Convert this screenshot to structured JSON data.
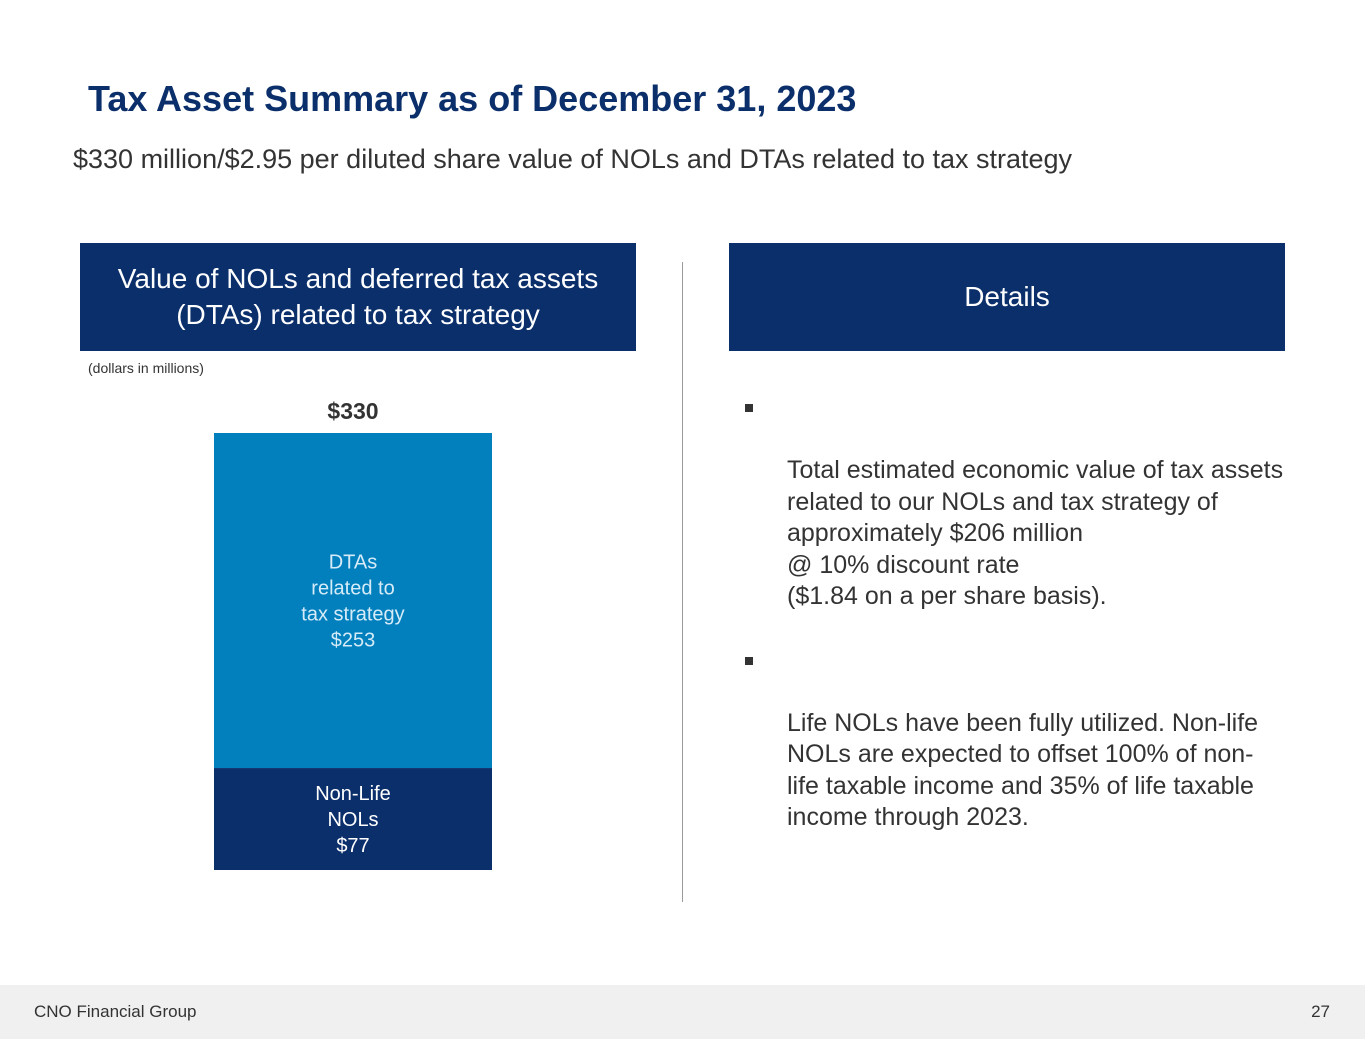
{
  "title": "Tax Asset Summary as of December 31, 2023",
  "subtitle": "$330 million/$2.95 per diluted share value of NOLs and DTAs related to tax strategy",
  "left_panel": {
    "header": "Value of NOLs and deferred tax assets (DTAs) related to tax strategy",
    "units": "(dollars in millions)"
  },
  "right_panel": {
    "header": "Details",
    "bullets": [
      "Total estimated economic value of tax assets related to our NOLs and tax strategy of approximately $206 million\n@ 10% discount rate\n($1.84 on a per share basis).",
      "Life NOLs have been fully utilized. Non-life NOLs are expected to offset 100% of non-life taxable income and 35% of life taxable income through 2023."
    ]
  },
  "chart_data": {
    "type": "bar",
    "stacked": true,
    "categories": [
      ""
    ],
    "total": 330,
    "total_label": "$330",
    "series": [
      {
        "name": "Non-Life NOLs",
        "values": [
          77
        ],
        "label_lines": [
          "Non-Life",
          "NOLs",
          "$77"
        ],
        "color": "#0b2f6b",
        "text_color": "#ffffff"
      },
      {
        "name": "DTAs related to tax strategy",
        "values": [
          253
        ],
        "label_lines": [
          "DTAs",
          "related to",
          "tax strategy",
          "$253"
        ],
        "color": "#0180bd",
        "text_color": "#d6ebf7"
      }
    ],
    "title": "",
    "xlabel": "",
    "ylabel": ""
  },
  "footer": {
    "company": "CNO Financial Group",
    "page_number": "27"
  }
}
